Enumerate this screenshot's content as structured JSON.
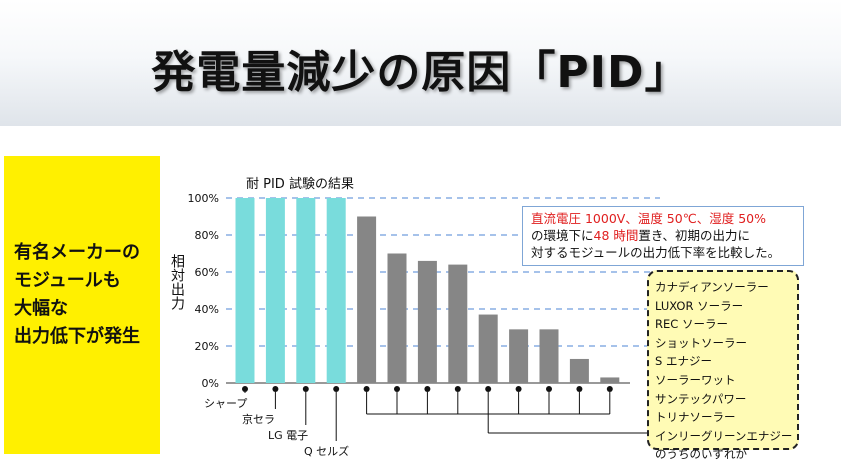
{
  "slide": {
    "title": "発電量減少の原因「PID」",
    "callout_lines": [
      "有名メーカーの",
      "モジュールも",
      "大幅な",
      "出力低下が発生"
    ],
    "note": {
      "line1_highlight": "直流電圧 1000V、温度 50℃、湿度 50%",
      "line2_prefix": "の環境下に",
      "line2_highlight": "48 時間",
      "line2_suffix": "置き、初期の出力に",
      "line3": "対するモジュールの出力低下率を比較した。"
    },
    "makers_list": [
      "カナディアンソーラー",
      "LUXOR ソーラー",
      "REC ソーラー",
      "ショットソーラー",
      "S エナジー",
      "ソーラーワット",
      "サンテックパワー",
      "トリナソーラー",
      "インリーグリーンエナジー",
      "のうちのいずれか"
    ],
    "colors": {
      "callout_bg": "#fff000",
      "note_highlight": "#e02020",
      "makers_bg": "#fffbb5"
    }
  },
  "chart_data": {
    "type": "bar",
    "title": "耐 PID 試験の結果",
    "ylabel": "相対出力",
    "ylim": [
      0,
      100
    ],
    "yticks": [
      "0%",
      "20%",
      "40%",
      "60%",
      "80%",
      "100%"
    ],
    "grid": "dashed horizontal",
    "values": [
      100,
      100,
      100,
      100,
      90,
      70,
      66,
      64,
      37,
      29,
      29,
      13,
      3
    ],
    "bar_colors": [
      "#79dcdc",
      "#79dcdc",
      "#79dcdc",
      "#79dcdc",
      "#868686",
      "#868686",
      "#868686",
      "#868686",
      "#868686",
      "#868686",
      "#868686",
      "#868686",
      "#868686"
    ],
    "named_labels": [
      "シャープ",
      "京セラ",
      "LG 電子",
      "Q セルズ"
    ]
  }
}
